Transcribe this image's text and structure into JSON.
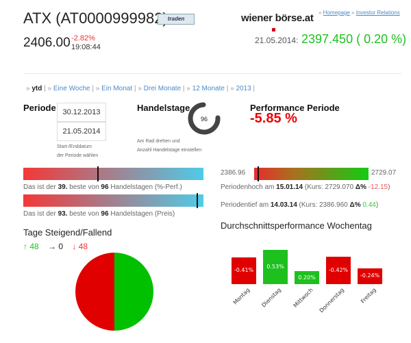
{
  "header": {
    "title": "ATX (AT0000999982)",
    "traden_label": "traden",
    "price": "2406.00",
    "change": "-2.82%",
    "time": "19:08:44",
    "logo": "wiener börse.at",
    "links": [
      "Homepage",
      "Investor Relations"
    ],
    "index_date": "21.05.2014:",
    "index_value": "2397.450 ( 0.20 %)"
  },
  "tabs": [
    {
      "label": "ytd",
      "active": true
    },
    {
      "label": "Eine Woche"
    },
    {
      "label": "Ein Monat"
    },
    {
      "label": "Drei Monate"
    },
    {
      "label": "12 Monate"
    },
    {
      "label": "2013"
    }
  ],
  "periode": {
    "label": "Periode",
    "start": "30.12.2013",
    "end": "21.05.2014",
    "hint1": "Start-/Enddatum",
    "hint2": "der Periode wählen"
  },
  "handelstage": {
    "label": "Handelstage",
    "value": "96",
    "hint1": "Am Rad drehen und",
    "hint2": "Anzahl Handelstage einstellen"
  },
  "performance": {
    "label": "Performance Periode",
    "value": "-5.85 %"
  },
  "rank_perf": {
    "pre": "Das ist der",
    "rank": "39.",
    "mid": "beste von",
    "total": "96",
    "post": "Handelstagen (%-Perf.)",
    "fraction": 0.41
  },
  "rank_price": {
    "pre": "Das ist der",
    "rank": "93.",
    "mid": "beste von",
    "total": "96",
    "post": "Handelstagen (Preis)",
    "fraction": 0.97
  },
  "range": {
    "min": "2386.96",
    "max": "2729.07",
    "current_fraction": 0.03,
    "high": {
      "pre": "Periodenhoch am",
      "date": "15.01.14",
      "kurs": "(Kurs: 2729.070",
      "delta": "Δ%",
      "val": "-12.15",
      "close": ")"
    },
    "low": {
      "pre": "Periodentief am",
      "date": "14.03.14",
      "kurs": "(Kurs: 2386.960",
      "delta": "Δ%",
      "val": "0.44",
      "close": ")"
    }
  },
  "updown": {
    "title": "Tage Steigend/Fallend",
    "up": "↑ 48",
    "flat": "→ 0",
    "down": "↓ 48"
  },
  "colors": {
    "up": "#1ec01e",
    "down": "#e00000"
  },
  "chart_data": {
    "type": "bar",
    "title": "Durchschnittsperformance Wochentag",
    "categories": [
      "Montag",
      "Dienstag",
      "Mittwoch",
      "Donnerstag",
      "Freitag"
    ],
    "values": [
      -0.41,
      0.53,
      0.2,
      -0.42,
      -0.24
    ],
    "labels": [
      "-0.41%",
      "0.53%",
      "0.20%",
      "-0.42%",
      "-0.24%"
    ]
  },
  "pie_data": {
    "type": "pie",
    "values": [
      48,
      48
    ],
    "colors": [
      "#00c000",
      "#e00000"
    ]
  }
}
